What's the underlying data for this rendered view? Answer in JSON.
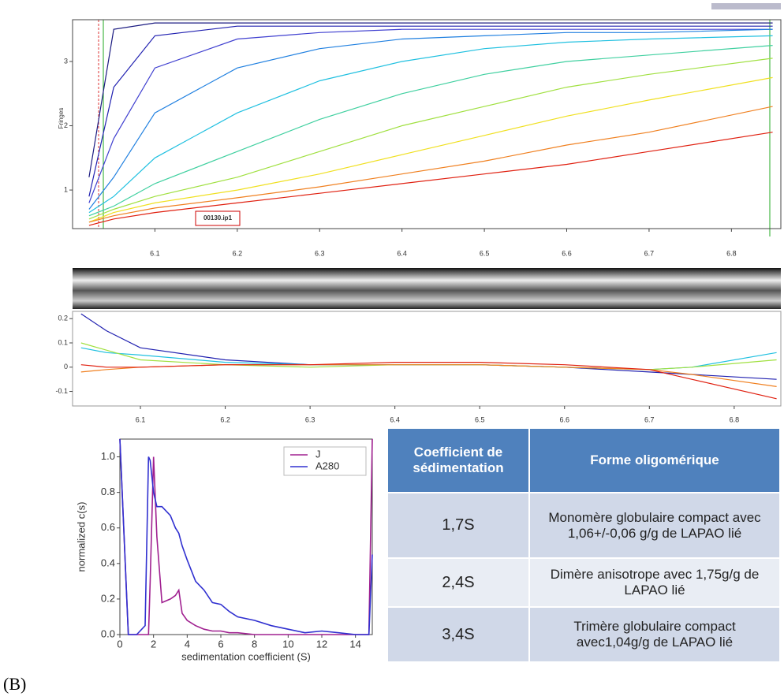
{
  "panel_label": "(B)",
  "chart_data": [
    {
      "type": "line",
      "ylabel": "Fringes",
      "annotation": "00130.ip1",
      "x": [
        6.02,
        6.05,
        6.1,
        6.2,
        6.3,
        6.4,
        6.5,
        6.6,
        6.7,
        6.85
      ],
      "xlim": [
        6.0,
        6.86
      ],
      "xticks": [
        6.1,
        6.2,
        6.3,
        6.4,
        6.5,
        6.6,
        6.7,
        6.8
      ],
      "ylim": [
        0.4,
        3.65
      ],
      "yticks": [
        1,
        2,
        3
      ],
      "series": [
        {
          "color": "#1a1a80",
          "values": [
            1.2,
            3.5,
            3.6,
            3.6,
            3.6,
            3.6,
            3.6,
            3.6,
            3.6,
            3.6
          ]
        },
        {
          "color": "#2020b0",
          "values": [
            0.9,
            2.6,
            3.4,
            3.55,
            3.55,
            3.55,
            3.55,
            3.55,
            3.55,
            3.55
          ]
        },
        {
          "color": "#4040d0",
          "values": [
            0.8,
            1.8,
            2.9,
            3.35,
            3.45,
            3.5,
            3.5,
            3.5,
            3.5,
            3.5
          ]
        },
        {
          "color": "#2080e0",
          "values": [
            0.7,
            1.2,
            2.2,
            2.9,
            3.2,
            3.35,
            3.4,
            3.45,
            3.45,
            3.5
          ]
        },
        {
          "color": "#20c0e0",
          "values": [
            0.65,
            0.9,
            1.5,
            2.2,
            2.7,
            3.0,
            3.2,
            3.3,
            3.35,
            3.4
          ]
        },
        {
          "color": "#40d0a0",
          "values": [
            0.6,
            0.75,
            1.1,
            1.6,
            2.1,
            2.5,
            2.8,
            3.0,
            3.1,
            3.25
          ]
        },
        {
          "color": "#a0e040",
          "values": [
            0.55,
            0.7,
            0.9,
            1.2,
            1.6,
            2.0,
            2.3,
            2.6,
            2.8,
            3.05
          ]
        },
        {
          "color": "#f0e020",
          "values": [
            0.5,
            0.65,
            0.8,
            1.0,
            1.25,
            1.55,
            1.85,
            2.15,
            2.4,
            2.75
          ]
        },
        {
          "color": "#f08020",
          "values": [
            0.5,
            0.6,
            0.72,
            0.88,
            1.05,
            1.25,
            1.45,
            1.7,
            1.9,
            2.3
          ]
        },
        {
          "color": "#e02010",
          "values": [
            0.45,
            0.55,
            0.65,
            0.8,
            0.95,
            1.1,
            1.25,
            1.4,
            1.6,
            1.9
          ]
        }
      ]
    },
    {
      "type": "line",
      "x": [
        6.03,
        6.06,
        6.1,
        6.2,
        6.3,
        6.4,
        6.5,
        6.6,
        6.7,
        6.75,
        6.85
      ],
      "xlim": [
        6.02,
        6.855
      ],
      "xticks": [
        6.1,
        6.2,
        6.3,
        6.4,
        6.5,
        6.6,
        6.7,
        6.8
      ],
      "ylim": [
        -0.16,
        0.23
      ],
      "yticks": [
        0.2,
        0.1,
        0,
        -0.1
      ],
      "series": [
        {
          "color": "#2020b0",
          "values": [
            0.22,
            0.15,
            0.08,
            0.03,
            0.01,
            0.01,
            0.01,
            0.0,
            -0.02,
            -0.03,
            -0.05
          ]
        },
        {
          "color": "#20c0e0",
          "values": [
            0.08,
            0.06,
            0.05,
            0.02,
            0.01,
            0.01,
            0.01,
            0.0,
            -0.01,
            0.0,
            0.06
          ]
        },
        {
          "color": "#a0e040",
          "values": [
            0.1,
            0.07,
            0.03,
            0.01,
            0.0,
            0.01,
            0.01,
            0.0,
            -0.01,
            0.0,
            0.03
          ]
        },
        {
          "color": "#f08020",
          "values": [
            -0.02,
            -0.01,
            0.0,
            0.01,
            0.01,
            0.01,
            0.01,
            0.0,
            -0.01,
            -0.03,
            -0.08
          ]
        },
        {
          "color": "#e02010",
          "values": [
            0.01,
            0.0,
            0.0,
            0.01,
            0.01,
            0.02,
            0.02,
            0.01,
            -0.01,
            -0.05,
            -0.13
          ]
        }
      ]
    },
    {
      "type": "line",
      "xlabel": "sedimentation coefficient (S)",
      "ylabel": "normalized c(s)",
      "legend": "upper right",
      "x": [
        0,
        0.5,
        1,
        1.5,
        1.7,
        1.8,
        2,
        2.2,
        2.5,
        3,
        3.3,
        3.5,
        3.7,
        4,
        4.5,
        5,
        5.5,
        6,
        6.5,
        7,
        8,
        9,
        10,
        11,
        12,
        13,
        14,
        14.8,
        15
      ],
      "xlim": [
        0,
        15
      ],
      "xticks": [
        0,
        2,
        4,
        6,
        8,
        10,
        12,
        14
      ],
      "ylim": [
        0,
        1.1
      ],
      "yticks": [
        {
          "value": 0,
          "label": "0.0"
        },
        0.2,
        0.4,
        0.6,
        0.8,
        {
          "value": 1,
          "label": "1.0"
        }
      ],
      "series": [
        {
          "name": "J",
          "color": "#a02090",
          "values": [
            1.1,
            0,
            0,
            0,
            0,
            0.3,
            1.0,
            0.55,
            0.18,
            0.2,
            0.22,
            0.25,
            0.12,
            0.08,
            0.05,
            0.03,
            0.02,
            0.02,
            0.01,
            0.01,
            0,
            0,
            0,
            0,
            0,
            0,
            0,
            0,
            1.1
          ]
        },
        {
          "name": "A280",
          "color": "#3030d0",
          "values": [
            1.1,
            0,
            0,
            0.05,
            1.0,
            0.98,
            0.8,
            0.72,
            0.72,
            0.67,
            0.6,
            0.57,
            0.5,
            0.42,
            0.3,
            0.25,
            0.18,
            0.17,
            0.13,
            0.1,
            0.08,
            0.05,
            0.03,
            0.01,
            0.02,
            0.01,
            0,
            0,
            0.45
          ]
        }
      ]
    }
  ],
  "table": {
    "header": [
      "Coefficient de sédimentation",
      "Forme oligomérique"
    ],
    "rows": [
      [
        "1,7S",
        "Monomère globulaire compact avec 1,06+/-0,06 g/g de LAPAO lié"
      ],
      [
        "2,4S",
        "Dimère anisotrope avec 1,75g/g de LAPAO lié"
      ],
      [
        "3,4S",
        "Trimère globulaire compact avec1,04g/g de LAPAO lié"
      ]
    ]
  }
}
